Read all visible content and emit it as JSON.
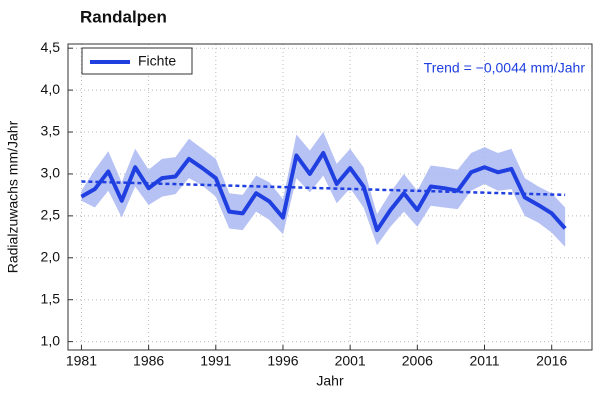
{
  "chart_data": {
    "type": "line",
    "title": "Randalpen",
    "xlabel": "Jahr",
    "ylabel": "Radialzuwachs mm/Jahr",
    "x": [
      1981,
      1982,
      1983,
      1984,
      1985,
      1986,
      1987,
      1988,
      1989,
      1990,
      1991,
      1992,
      1993,
      1994,
      1995,
      1996,
      1997,
      1998,
      1999,
      2000,
      2001,
      2002,
      2003,
      2004,
      2005,
      2006,
      2007,
      2008,
      2009,
      2010,
      2011,
      2012,
      2013,
      2014,
      2015,
      2016,
      2017
    ],
    "series": [
      {
        "name": "Fichte",
        "color": "#1f3fe0",
        "band_color": "#a9b6f2",
        "values": [
          2.73,
          2.82,
          3.03,
          2.68,
          3.08,
          2.83,
          2.95,
          2.97,
          3.18,
          3.07,
          2.95,
          2.55,
          2.53,
          2.77,
          2.67,
          2.48,
          3.22,
          3.0,
          3.25,
          2.88,
          3.07,
          2.85,
          2.33,
          2.57,
          2.77,
          2.57,
          2.85,
          2.83,
          2.8,
          3.02,
          3.08,
          3.02,
          3.06,
          2.72,
          2.63,
          2.53,
          2.35
        ],
        "band": {
          "lower": [
            2.68,
            2.6,
            2.8,
            2.48,
            2.85,
            2.63,
            2.73,
            2.76,
            2.95,
            2.86,
            2.73,
            2.35,
            2.33,
            2.55,
            2.45,
            2.28,
            2.95,
            2.78,
            2.98,
            2.65,
            2.83,
            2.6,
            2.15,
            2.37,
            2.55,
            2.37,
            2.62,
            2.6,
            2.58,
            2.8,
            2.88,
            2.8,
            2.82,
            2.5,
            2.42,
            2.3,
            2.13
          ],
          "upper": [
            2.8,
            3.05,
            3.27,
            2.9,
            3.3,
            3.05,
            3.18,
            3.2,
            3.42,
            3.3,
            3.18,
            2.77,
            2.75,
            2.98,
            2.9,
            2.7,
            3.47,
            3.28,
            3.5,
            3.12,
            3.3,
            3.08,
            2.52,
            2.78,
            3.0,
            2.8,
            3.1,
            3.08,
            3.05,
            3.25,
            3.32,
            3.25,
            3.3,
            2.95,
            2.85,
            2.77,
            2.6
          ]
        }
      }
    ],
    "trend": {
      "x": [
        1981,
        2017
      ],
      "values": [
        2.91,
        2.75
      ],
      "label": "Trend = −0,0044 mm/Jahr"
    },
    "xlim": [
      1980,
      2019
    ],
    "ylim": [
      0.9,
      4.55
    ],
    "xticks": [
      1981,
      1986,
      1991,
      1996,
      2001,
      2006,
      2011,
      2016
    ],
    "yticks": [
      {
        "value": 1.0,
        "label": "1,0"
      },
      {
        "value": 1.5,
        "label": "1,5"
      },
      {
        "value": 2.0,
        "label": "2,0"
      },
      {
        "value": 2.5,
        "label": "2,5"
      },
      {
        "value": 3.0,
        "label": "3,0"
      },
      {
        "value": 3.5,
        "label": "3,5"
      },
      {
        "value": 4.0,
        "label": "4,0"
      },
      {
        "value": 4.5,
        "label": "4,5"
      }
    ],
    "grid": true,
    "legend": "upper left"
  }
}
